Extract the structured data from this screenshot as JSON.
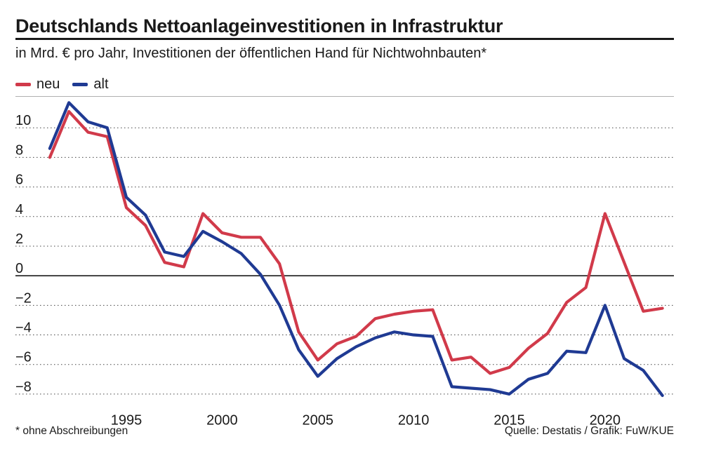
{
  "header": {
    "title": "Deutschlands Nettoanlageinvestitionen in Infrastruktur",
    "subtitle": "in Mrd. € pro Jahr, Investitionen der öffentlichen Hand für Nichtwohnbauten*"
  },
  "legend": [
    {
      "label": "neu",
      "color": "#d13a4a"
    },
    {
      "label": "alt",
      "color": "#1f3a93"
    }
  ],
  "footer": {
    "footnote": "* ohne Abschreibungen",
    "source": "Quelle: Destatis / Grafik: FuW/KUE"
  },
  "chart_data": {
    "type": "line",
    "title": "Deutschlands Nettoanlageinvestitionen in Infrastruktur",
    "subtitle": "in Mrd. € pro Jahr, Investitionen der öffentlichen Hand für Nichtwohnbauten*",
    "xlabel": "",
    "ylabel": "",
    "x": [
      1991,
      1992,
      1993,
      1994,
      1995,
      1996,
      1997,
      1998,
      1999,
      2000,
      2001,
      2002,
      2003,
      2004,
      2005,
      2006,
      2007,
      2008,
      2009,
      2010,
      2011,
      2012,
      2013,
      2014,
      2015,
      2016,
      2017,
      2018,
      2019,
      2020,
      2021,
      2022,
      2023
    ],
    "xlim": [
      1990.6,
      2023.6
    ],
    "ylim": [
      -9,
      12
    ],
    "xticks": [
      1995,
      2000,
      2005,
      2010,
      2015,
      2020
    ],
    "yticks": [
      -8,
      -6,
      -4,
      -2,
      0,
      2,
      4,
      6,
      8,
      10
    ],
    "ytick_labels": [
      "−8",
      "−6",
      "−4",
      "−2",
      "0",
      "2",
      "4",
      "6",
      "8",
      "10"
    ],
    "grid": "horizontal dotted",
    "legend_position": "top-left",
    "series": [
      {
        "name": "neu",
        "color": "#d13a4a",
        "values": [
          8.0,
          11.1,
          9.7,
          9.4,
          4.6,
          3.4,
          0.9,
          0.6,
          4.2,
          2.9,
          2.6,
          2.6,
          0.8,
          -3.8,
          -5.7,
          -4.6,
          -4.1,
          -2.9,
          -2.6,
          -2.4,
          -2.3,
          -5.7,
          -5.5,
          -6.6,
          -6.2,
          -4.9,
          -3.9,
          -1.8,
          -0.8,
          4.2,
          0.9,
          -2.4,
          -2.2
        ]
      },
      {
        "name": "alt",
        "color": "#1f3a93",
        "values": [
          8.6,
          11.7,
          10.4,
          10.0,
          5.3,
          4.1,
          1.6,
          1.3,
          3.0,
          2.3,
          1.5,
          0.1,
          -2.0,
          -5.0,
          -6.8,
          -5.6,
          -4.8,
          -4.2,
          -3.8,
          -4.0,
          -4.1,
          -7.5,
          -7.6,
          -7.7,
          -8.0,
          -7.0,
          -6.6,
          -5.1,
          -5.2,
          -2.0,
          -5.6,
          -6.4,
          -8.1
        ]
      }
    ]
  }
}
